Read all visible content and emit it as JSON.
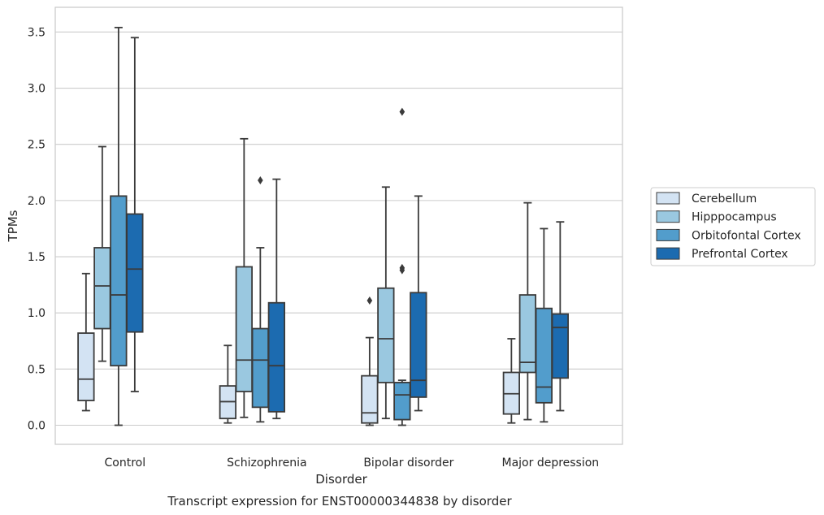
{
  "caption": "Transcript expression for ENST00000344838 by disorder",
  "chart_data": {
    "type": "box",
    "xlabel": "Disorder",
    "ylabel": "TPMs",
    "ylim": [
      -0.17,
      3.72
    ],
    "yticks": [
      "0.0",
      "0.5",
      "1.0",
      "1.5",
      "2.0",
      "2.5",
      "3.0",
      "3.5"
    ],
    "ytick_values": [
      0.0,
      0.5,
      1.0,
      1.5,
      2.0,
      2.5,
      3.0,
      3.5
    ],
    "grid": "horizontal",
    "legend_position": "right",
    "categories": [
      "Control",
      "Schizophrenia",
      "Bipolar disorder",
      "Major depression"
    ],
    "series": [
      {
        "name": "Cerebellum",
        "color": "#d3e3f3",
        "boxes": [
          {
            "whislo": 0.13,
            "q1": 0.22,
            "med": 0.41,
            "q3": 0.82,
            "whishi": 1.35,
            "fliers": []
          },
          {
            "whislo": 0.02,
            "q1": 0.06,
            "med": 0.21,
            "q3": 0.35,
            "whishi": 0.71,
            "fliers": []
          },
          {
            "whislo": 0.0,
            "q1": 0.02,
            "med": 0.11,
            "q3": 0.44,
            "whishi": 0.78,
            "fliers": [
              1.11
            ]
          },
          {
            "whislo": 0.02,
            "q1": 0.1,
            "med": 0.28,
            "q3": 0.47,
            "whishi": 0.77,
            "fliers": []
          }
        ]
      },
      {
        "name": "Hipppocampus",
        "color": "#9ac8e0",
        "boxes": [
          {
            "whislo": 0.57,
            "q1": 0.86,
            "med": 1.24,
            "q3": 1.58,
            "whishi": 2.48,
            "fliers": []
          },
          {
            "whislo": 0.07,
            "q1": 0.3,
            "med": 0.58,
            "q3": 1.41,
            "whishi": 2.55,
            "fliers": []
          },
          {
            "whislo": 0.06,
            "q1": 0.38,
            "med": 0.77,
            "q3": 1.22,
            "whishi": 2.12,
            "fliers": []
          },
          {
            "whislo": 0.05,
            "q1": 0.47,
            "med": 0.56,
            "q3": 1.16,
            "whishi": 1.98,
            "fliers": []
          }
        ]
      },
      {
        "name": "Orbitofontal Cortex",
        "color": "#529dcc",
        "boxes": [
          {
            "whislo": 0.0,
            "q1": 0.53,
            "med": 1.16,
            "q3": 2.04,
            "whishi": 3.54,
            "fliers": []
          },
          {
            "whislo": 0.03,
            "q1": 0.16,
            "med": 0.58,
            "q3": 0.86,
            "whishi": 1.58,
            "fliers": [
              2.18
            ]
          },
          {
            "whislo": 0.0,
            "q1": 0.05,
            "med": 0.27,
            "q3": 0.38,
            "whishi": 0.4,
            "fliers": [
              1.38,
              1.4,
              2.79
            ]
          },
          {
            "whislo": 0.03,
            "q1": 0.2,
            "med": 0.34,
            "q3": 1.04,
            "whishi": 1.75,
            "fliers": []
          }
        ]
      },
      {
        "name": "Prefrontal Cortex",
        "color": "#1c6bb0",
        "boxes": [
          {
            "whislo": 0.3,
            "q1": 0.83,
            "med": 1.39,
            "q3": 1.88,
            "whishi": 3.45,
            "fliers": []
          },
          {
            "whislo": 0.06,
            "q1": 0.12,
            "med": 0.53,
            "q3": 1.09,
            "whishi": 2.19,
            "fliers": []
          },
          {
            "whislo": 0.13,
            "q1": 0.25,
            "med": 0.4,
            "q3": 1.18,
            "whishi": 2.04,
            "fliers": []
          },
          {
            "whislo": 0.13,
            "q1": 0.42,
            "med": 0.87,
            "q3": 0.99,
            "whishi": 1.81,
            "fliers": []
          }
        ]
      }
    ]
  }
}
